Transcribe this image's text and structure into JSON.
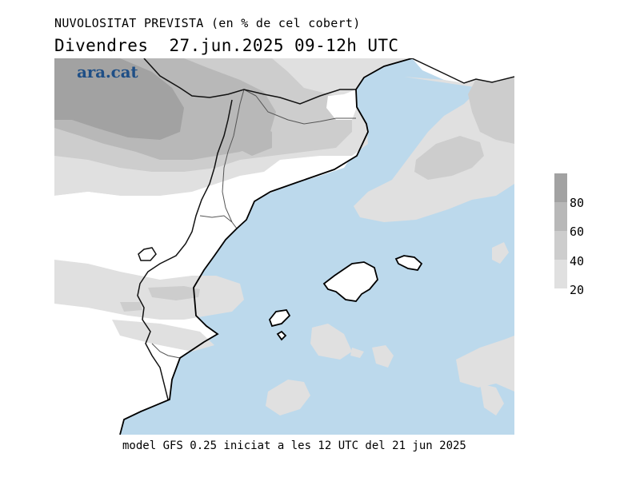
{
  "header": {
    "title": "NUVOLOSITAT PREVISTA (en % de cel cobert)",
    "day": "Divendres",
    "date": "27.jun.2025",
    "time_range": "09-12h UTC"
  },
  "brand": {
    "logo_text": "ara.cat"
  },
  "legend": {
    "labels": [
      "80",
      "60",
      "40",
      "20"
    ],
    "colors": [
      "#a2a2a2",
      "#b8b8b8",
      "#cdcdcd",
      "#e0e0e0"
    ]
  },
  "footer": {
    "caption": "model GFS 0.25 iniciat a les 12 UTC del 21 jun 2025"
  },
  "colors": {
    "sea": "#bcd9ec",
    "land": "#ffffff",
    "coast": "#000000"
  }
}
